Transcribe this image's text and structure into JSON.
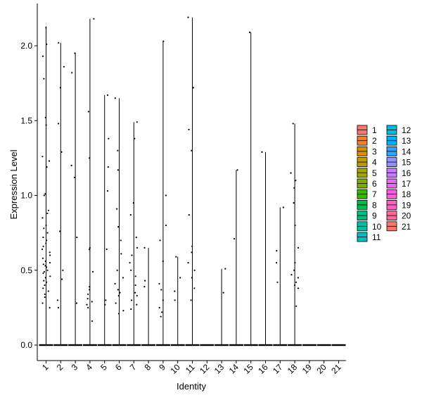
{
  "chart_data": {
    "type": "violin",
    "title": "",
    "xlabel": "Identity",
    "ylabel": "Expression Level",
    "ylim": [
      -0.1,
      2.28
    ],
    "yticks": [
      "0.0",
      "0.5",
      "1.0",
      "1.5",
      "2.0"
    ],
    "categories": [
      "1",
      "2",
      "3",
      "4",
      "5",
      "6",
      "7",
      "8",
      "9",
      "10",
      "11",
      "12",
      "13",
      "14",
      "15",
      "16",
      "17",
      "18",
      "19",
      "20",
      "21"
    ],
    "max_values": [
      2.13,
      2.02,
      1.95,
      2.18,
      1.67,
      1.65,
      1.49,
      0.65,
      2.03,
      0.59,
      2.19,
      0,
      0.51,
      1.17,
      2.09,
      1.29,
      0.92,
      1.48,
      0,
      0,
      0
    ],
    "legend": {
      "position": "right",
      "entries": [
        "1",
        "2",
        "3",
        "4",
        "5",
        "6",
        "7",
        "8",
        "9",
        "10",
        "11",
        "12",
        "13",
        "14",
        "15",
        "16",
        "17",
        "18",
        "19",
        "20",
        "21"
      ],
      "colors": [
        "#F8766D",
        "#EA8331",
        "#D89000",
        "#C09B00",
        "#A3A500",
        "#7CAE00",
        "#39B600",
        "#00BB4E",
        "#00BF7D",
        "#00C1A3",
        "#00BFC4",
        "#00BAE0",
        "#00B0F6",
        "#35A2FF",
        "#9590FF",
        "#C77CFF",
        "#E76BF3",
        "#FA62DB",
        "#FF62BC",
        "#FF6A98",
        "#F8766D"
      ]
    },
    "points": [
      [
        1,
        2.12
      ],
      [
        1,
        2.01
      ],
      [
        1,
        1.93
      ],
      [
        1,
        1.78
      ],
      [
        1,
        1.52
      ],
      [
        1,
        1.47
      ],
      [
        1,
        1.26
      ],
      [
        1,
        1.23
      ],
      [
        1,
        1.19
      ],
      [
        1,
        1.01
      ],
      [
        1,
        1.0
      ],
      [
        1,
        0.9
      ],
      [
        1,
        0.88
      ],
      [
        1,
        0.85
      ],
      [
        1,
        0.8
      ],
      [
        1,
        0.78
      ],
      [
        1,
        0.75
      ],
      [
        1,
        0.72
      ],
      [
        1,
        0.7
      ],
      [
        1,
        0.68
      ],
      [
        1,
        0.66
      ],
      [
        1,
        0.64
      ],
      [
        1,
        0.62
      ],
      [
        1,
        0.6
      ],
      [
        1,
        0.58
      ],
      [
        1,
        0.56
      ],
      [
        1,
        0.55
      ],
      [
        1,
        0.54
      ],
      [
        1,
        0.53
      ],
      [
        1,
        0.52
      ],
      [
        1,
        0.5
      ],
      [
        1,
        0.49
      ],
      [
        1,
        0.48
      ],
      [
        1,
        0.46
      ],
      [
        1,
        0.45
      ],
      [
        1,
        0.43
      ],
      [
        1,
        0.42
      ],
      [
        1,
        0.4
      ],
      [
        1,
        0.38
      ],
      [
        1,
        0.36
      ],
      [
        1,
        0.34
      ],
      [
        1,
        0.32
      ],
      [
        1,
        0.28
      ],
      [
        1,
        0.25
      ],
      [
        2,
        2.02
      ],
      [
        2,
        1.86
      ],
      [
        2,
        1.72
      ],
      [
        2,
        1.48
      ],
      [
        2,
        1.29
      ],
      [
        2,
        0.76
      ],
      [
        2,
        0.5
      ],
      [
        2,
        0.44
      ],
      [
        2,
        0.3
      ],
      [
        2,
        0.25
      ],
      [
        3,
        1.95
      ],
      [
        3,
        1.82
      ],
      [
        3,
        1.2
      ],
      [
        3,
        1.12
      ],
      [
        3,
        0.72
      ],
      [
        3,
        0.28
      ],
      [
        4,
        2.18
      ],
      [
        4,
        1.56
      ],
      [
        4,
        1.25
      ],
      [
        4,
        0.65
      ],
      [
        4,
        0.64
      ],
      [
        4,
        0.49
      ],
      [
        4,
        0.39
      ],
      [
        4,
        0.37
      ],
      [
        4,
        0.34
      ],
      [
        4,
        0.31
      ],
      [
        4,
        0.29
      ],
      [
        4,
        0.27
      ],
      [
        4,
        0.25
      ],
      [
        4,
        0.16
      ],
      [
        5,
        1.67
      ],
      [
        5,
        1.38
      ],
      [
        5,
        1.19
      ],
      [
        5,
        1.03
      ],
      [
        5,
        0.64
      ],
      [
        5,
        0.3
      ],
      [
        5,
        0.27
      ],
      [
        6,
        1.65
      ],
      [
        6,
        1.3
      ],
      [
        6,
        1.17
      ],
      [
        6,
        0.91
      ],
      [
        6,
        0.79
      ],
      [
        6,
        0.7
      ],
      [
        6,
        0.61
      ],
      [
        6,
        0.5
      ],
      [
        6,
        0.45
      ],
      [
        6,
        0.41
      ],
      [
        6,
        0.37
      ],
      [
        6,
        0.35
      ],
      [
        6,
        0.33
      ],
      [
        6,
        0.28
      ],
      [
        6,
        0.23
      ],
      [
        6,
        0.21
      ],
      [
        7,
        1.49
      ],
      [
        7,
        1.38
      ],
      [
        7,
        0.95
      ],
      [
        7,
        0.87
      ],
      [
        7,
        0.72
      ],
      [
        7,
        0.65
      ],
      [
        7,
        0.6
      ],
      [
        7,
        0.55
      ],
      [
        7,
        0.5
      ],
      [
        7,
        0.46
      ],
      [
        7,
        0.4
      ],
      [
        7,
        0.35
      ],
      [
        7,
        0.33
      ],
      [
        7,
        0.3
      ],
      [
        7,
        0.27
      ],
      [
        7,
        0.24
      ],
      [
        8,
        0.65
      ],
      [
        8,
        0.43
      ],
      [
        8,
        0.39
      ],
      [
        9,
        2.03
      ],
      [
        9,
        1.0
      ],
      [
        9,
        0.8
      ],
      [
        9,
        0.7
      ],
      [
        9,
        0.56
      ],
      [
        9,
        0.41
      ],
      [
        9,
        0.37
      ],
      [
        9,
        0.3
      ],
      [
        9,
        0.25
      ],
      [
        9,
        0.22
      ],
      [
        9,
        0.19
      ],
      [
        10,
        0.59
      ],
      [
        10,
        0.45
      ],
      [
        10,
        0.36
      ],
      [
        10,
        0.3
      ],
      [
        11,
        2.19
      ],
      [
        11,
        1.72
      ],
      [
        11,
        1.44
      ],
      [
        11,
        1.3
      ],
      [
        11,
        0.87
      ],
      [
        11,
        0.66
      ],
      [
        11,
        0.62
      ],
      [
        11,
        0.55
      ],
      [
        11,
        0.5
      ],
      [
        11,
        0.45
      ],
      [
        11,
        0.38
      ],
      [
        11,
        0.3
      ],
      [
        13,
        0.51
      ],
      [
        13,
        0.35
      ],
      [
        14,
        1.17
      ],
      [
        14,
        0.71
      ],
      [
        15,
        2.09
      ],
      [
        16,
        1.29
      ],
      [
        17,
        0.92
      ],
      [
        17,
        0.63
      ],
      [
        17,
        0.55
      ],
      [
        17,
        0.42
      ],
      [
        18,
        1.48
      ],
      [
        18,
        1.15
      ],
      [
        18,
        1.1
      ],
      [
        18,
        1.05
      ],
      [
        18,
        0.95
      ],
      [
        18,
        0.8
      ],
      [
        18,
        0.65
      ],
      [
        18,
        0.55
      ],
      [
        18,
        0.5
      ],
      [
        18,
        0.47
      ],
      [
        18,
        0.45
      ],
      [
        18,
        0.42
      ],
      [
        18,
        0.4
      ],
      [
        18,
        0.38
      ],
      [
        18,
        0.26
      ]
    ]
  }
}
